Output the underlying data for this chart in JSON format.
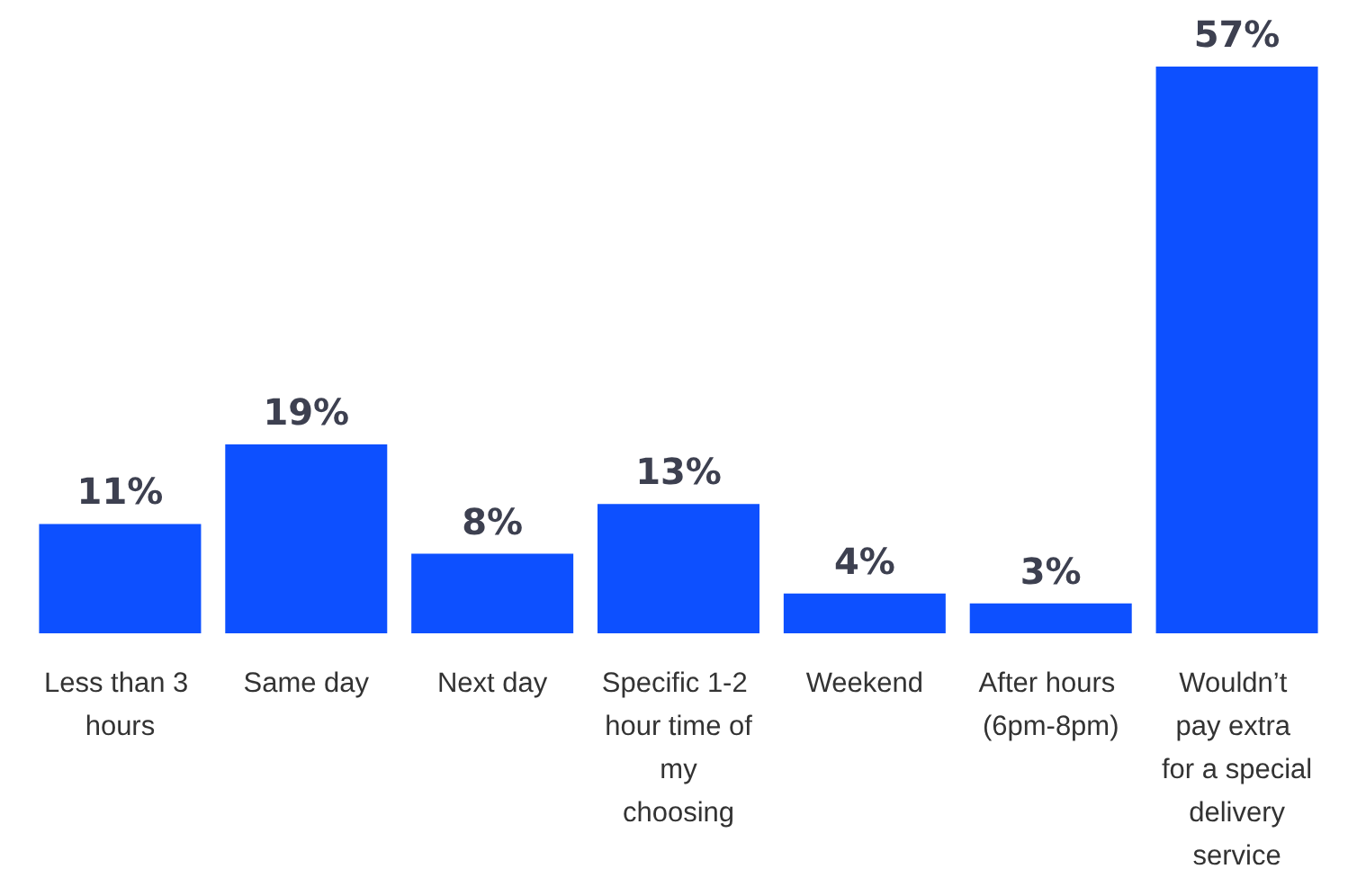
{
  "chart_data": {
    "type": "bar",
    "categories": [
      "Less than 3 hours",
      "Same day",
      "Next day",
      "Specific 1-2 hour time of my choosing",
      "Weekend",
      "After hours (6pm-8pm)",
      "Wouldn’t pay extra for a special delivery service"
    ],
    "values": [
      11,
      19,
      8,
      13,
      4,
      3,
      57
    ],
    "value_labels": [
      "11%",
      "19%",
      "8%",
      "13%",
      "4%",
      "3%",
      "57%"
    ],
    "color": "#0d50ff"
  }
}
